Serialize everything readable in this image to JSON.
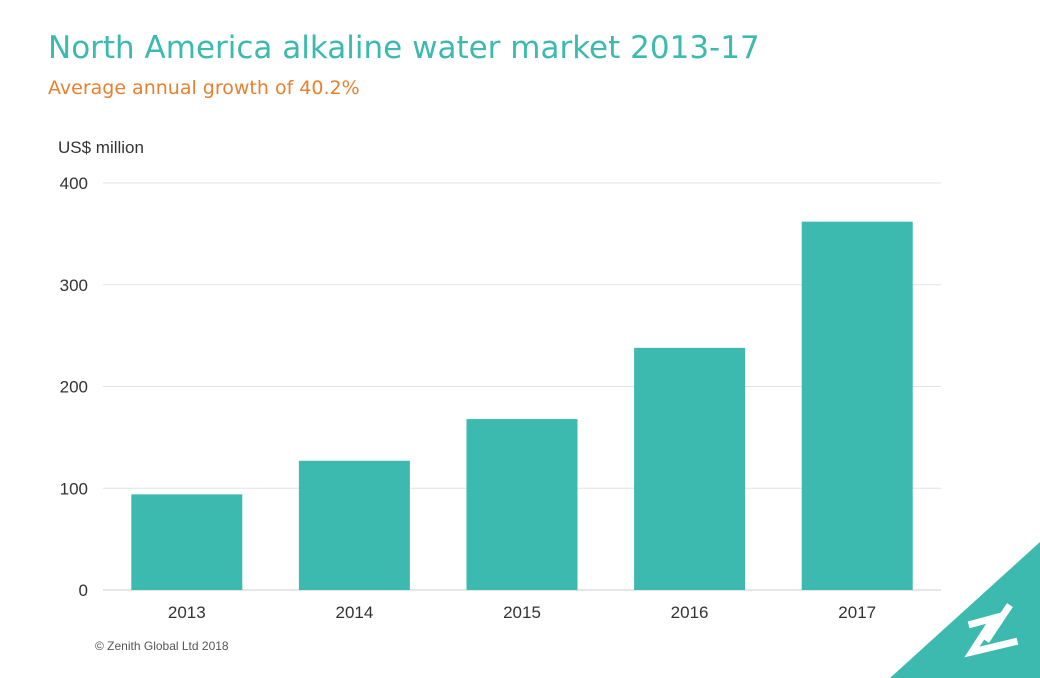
{
  "chart_data": {
    "type": "bar",
    "title": "North America alkaline water market 2013-17",
    "subtitle": "Average annual growth of 40.2%",
    "ylabel": "US$ million",
    "xlabel": "",
    "categories": [
      "2013",
      "2014",
      "2015",
      "2016",
      "2017"
    ],
    "values": [
      94,
      127,
      168,
      238,
      362
    ],
    "ylim": [
      0,
      400
    ],
    "yticks": [
      "0",
      "100",
      "200",
      "300",
      "400"
    ],
    "grid": true,
    "bar_color": "#3dbab0"
  },
  "footer": {
    "credit": "© Zenith Global Ltd 2018"
  },
  "colors": {
    "accent": "#3dbab0",
    "subtitle": "#e8802f"
  }
}
